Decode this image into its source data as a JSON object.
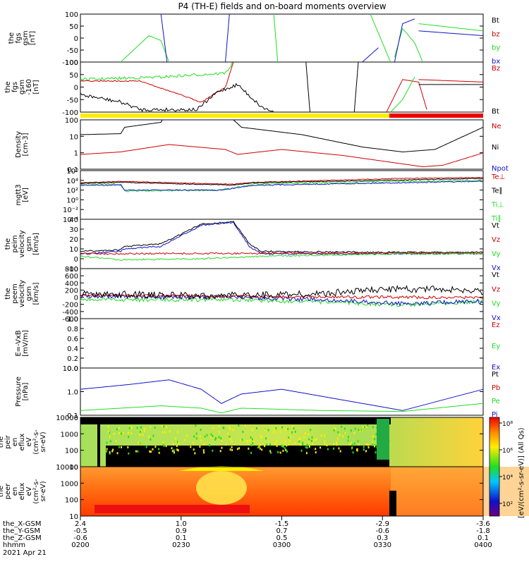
{
  "title": "P4 (TH-E) fields and on-board moments overview",
  "colors": {
    "black": "#000000",
    "red": "#cc0000",
    "green": "#22dd22",
    "blue": "#1111cc",
    "yellow": "#ffee00"
  },
  "panels": [
    {
      "ylabel": [
        "the",
        "fgs",
        "gsm",
        "[nT]"
      ],
      "ticks": [
        "100",
        "50",
        "0",
        "-50",
        "-100"
      ],
      "legend": [
        {
          "t": "Bt",
          "c": "black"
        },
        {
          "t": "bz",
          "c": "red"
        },
        {
          "t": "by",
          "c": "green"
        },
        {
          "t": "bx",
          "c": "blue"
        }
      ]
    },
    {
      "ylabel": [
        "the",
        "fgs",
        "gsm",
        "-160",
        "[nT]"
      ],
      "ticks": [
        "100",
        "50",
        "0",
        "-50",
        "-100"
      ],
      "legend": [
        {
          "t": "Bz",
          "c": "red"
        },
        {
          "t": "Bt",
          "c": "black"
        }
      ]
    },
    {
      "ylabel": [
        "Density",
        "[cm-3]"
      ],
      "ticks": [
        "100",
        "10",
        "1",
        "0.1"
      ],
      "legend": [
        {
          "t": "Ne",
          "c": "red"
        },
        {
          "t": "Ni",
          "c": "black"
        },
        {
          "t": "Npot",
          "c": "blue"
        }
      ]
    },
    {
      "ylabel": [
        "mgtt3",
        "[eV]"
      ],
      "ticks": [
        "10⁶",
        "10⁴",
        "10²",
        "10⁰",
        "10⁻²",
        "10⁻⁴"
      ],
      "legend": [
        {
          "t": "Te⊥",
          "c": "red"
        },
        {
          "t": "Te∥",
          "c": "black"
        },
        {
          "t": "Ti⊥",
          "c": "green"
        },
        {
          "t": "Ti∥",
          "c": "green"
        }
      ]
    },
    {
      "ylabel": [
        "the",
        "peim",
        "velocity",
        "gsm",
        "[km/s]"
      ],
      "ticks": [
        "40",
        "30",
        "20",
        "10",
        "0",
        "-10"
      ],
      "legend": [
        {
          "t": "Vt",
          "c": "black"
        },
        {
          "t": "Vz",
          "c": "red"
        },
        {
          "t": "Vy",
          "c": "green"
        },
        {
          "t": "Vx",
          "c": "blue"
        }
      ]
    },
    {
      "ylabel": [
        "the",
        "peem",
        "velocity",
        "gsm",
        "[km/s]"
      ],
      "ticks": [
        "800",
        "600",
        "400",
        "200",
        "0",
        "-200",
        "-400",
        "-600"
      ],
      "legend": [
        {
          "t": "Vt",
          "c": "black"
        },
        {
          "t": "Vz",
          "c": "red"
        },
        {
          "t": "Vy",
          "c": "green"
        },
        {
          "t": "Vx",
          "c": "blue"
        }
      ]
    },
    {
      "ylabel": [
        "E=-VxB",
        "[mV/m]"
      ],
      "ticks": [
        "1.0",
        "0.8",
        "0.6",
        "0.4",
        "0.2",
        "0.0"
      ],
      "legend": [
        {
          "t": "Ez",
          "c": "red"
        },
        {
          "t": "Ey",
          "c": "green"
        },
        {
          "t": "Ex",
          "c": "blue"
        }
      ]
    },
    {
      "ylabel": [
        "Pressure",
        "[nPa]"
      ],
      "ticks": [
        "10.0",
        "1.0",
        "0.1"
      ],
      "legend": [
        {
          "t": "Pt",
          "c": "black"
        },
        {
          "t": "Pb",
          "c": "red"
        },
        {
          "t": "Pe",
          "c": "green"
        },
        {
          "t": "Pi",
          "c": "blue"
        }
      ]
    },
    {
      "ylabel": [
        "the",
        "peir",
        "en",
        "eflux",
        "eV",
        "(cm²-s-",
        "sr-eV)"
      ],
      "ticks": [
        "10000",
        "1000",
        "100",
        "10"
      ],
      "legend": []
    },
    {
      "ylabel": [
        "the",
        "peer",
        "en",
        "eflux",
        "eV",
        "(cm²-s-",
        "sr-eV)"
      ],
      "ticks": [
        "10000",
        "1000",
        "100",
        "10"
      ],
      "legend": []
    }
  ],
  "colorbar": {
    "ticks": [
      "10⁸",
      "10⁶",
      "10⁴",
      "10²"
    ],
    "label": "[eV/(cm²-s-sr-eV)] (All Qs)"
  },
  "xaxis": {
    "row_labels": [
      "the_X-GSM",
      "the_Y-GSM",
      "the_Z-GSM",
      "hhmm",
      "2021 Apr 21"
    ],
    "columns": [
      {
        "vals": [
          "2.4",
          "-0.5",
          "-0.6",
          "0200"
        ]
      },
      {
        "vals": [
          "1.0",
          "0.9",
          "0.1",
          "0230"
        ]
      },
      {
        "vals": [
          "-1.5",
          "0.7",
          "0.5",
          "0300"
        ]
      },
      {
        "vals": [
          "-2.9",
          "-0.6",
          "0.3",
          "0330"
        ]
      },
      {
        "vals": [
          "-3.6",
          "-1.8",
          "0.1",
          "0400"
        ]
      }
    ]
  },
  "chart_data": [
    {
      "type": "line",
      "title": "P4 (TH-E) fields and on-board moments overview",
      "ylabel": "the fgs gsm [nT]",
      "ylim": [
        -100,
        100
      ],
      "x_time": [
        "0200",
        "0230",
        "0300",
        "0330",
        "0400"
      ],
      "series": [
        {
          "name": "Bt",
          "values": []
        },
        {
          "name": "bz",
          "values": []
        },
        {
          "name": "by",
          "values": [
            -100,
            0,
            -100,
            60,
            20
          ]
        },
        {
          "name": "bx",
          "values": [
            100,
            -100,
            100,
            -100,
            40
          ]
        }
      ]
    },
    {
      "type": "line",
      "ylabel": "the fgs gsm -160 [nT]",
      "ylim": [
        -120,
        100
      ],
      "x_time": [
        "0200",
        "0210",
        "0220",
        "0230",
        "0240",
        "0250",
        "0300",
        "0330",
        "0340",
        "0400"
      ],
      "series": [
        {
          "name": "Bz",
          "values": [
            30,
            25,
            0,
            -50,
            30,
            100,
            100,
            20,
            -20,
            5
          ]
        },
        {
          "name": "Bt",
          "values": [
            -40,
            -80,
            -110,
            -110,
            20,
            -80,
            -110,
            20,
            -10,
            0
          ]
        },
        {
          "name": "green",
          "values": [
            35,
            40,
            55,
            60,
            100,
            100,
            100,
            -100,
            -10,
            -5
          ]
        }
      ]
    },
    {
      "type": "line",
      "ylabel": "Density [cm-3]",
      "log": true,
      "ylim": [
        0.1,
        200
      ],
      "x_time": [
        "0200",
        "0210",
        "0220",
        "0230",
        "0240",
        "0250",
        "0300",
        "0315",
        "0330",
        "0345",
        "0400"
      ],
      "series": [
        {
          "name": "Ni",
          "values": [
            50,
            150,
            250,
            250,
            250,
            250,
            60,
            10,
            3,
            3,
            90
          ]
        },
        {
          "name": "Ne",
          "values": [
            0.5,
            1,
            3,
            5,
            3,
            1,
            1.5,
            0.5,
            0.15,
            0.3,
            2
          ]
        }
      ]
    },
    {
      "type": "line",
      "ylabel": "mgtt3 [eV]",
      "log": true,
      "ylim": [
        0.0001,
        1000000
      ],
      "series": [
        {
          "name": "Te⊥",
          "values": []
        },
        {
          "name": "Te∥",
          "values": []
        },
        {
          "name": "Ti⊥",
          "values": []
        },
        {
          "name": "Ti∥",
          "values": []
        }
      ]
    },
    {
      "type": "line",
      "ylabel": "the peim velocity gsm [km/s]",
      "ylim": [
        -15,
        40
      ],
      "x_time": [
        "0200",
        "0210",
        "0220",
        "0230",
        "0240",
        "0250",
        "0300",
        "0330",
        "0400"
      ],
      "series": [
        {
          "name": "Vt",
          "values": [
            5,
            10,
            12,
            20,
            38,
            30,
            5,
            5,
            3
          ]
        },
        {
          "name": "Vz",
          "values": [
            2,
            3,
            3,
            3,
            3,
            2,
            2,
            3,
            2
          ]
        },
        {
          "name": "Vy",
          "values": [
            0,
            -5,
            -3,
            -1,
            -2,
            0,
            1,
            2,
            1
          ]
        },
        {
          "name": "Vx",
          "values": [
            3,
            8,
            10,
            18,
            36,
            28,
            3,
            4,
            2
          ]
        }
      ]
    },
    {
      "type": "line",
      "ylabel": "the peem velocity gsm [km/s]",
      "ylim": [
        -650,
        850
      ],
      "series": [
        {
          "name": "Vt",
          "values": [
            120,
            100,
            110,
            100,
            120,
            200,
            250,
            200
          ]
        },
        {
          "name": "Vz",
          "values": [
            60,
            40,
            20,
            10,
            30,
            50,
            60,
            40
          ]
        },
        {
          "name": "Vy",
          "values": [
            -20,
            -40,
            -60,
            -40,
            -80,
            -150,
            -200,
            -100
          ]
        },
        {
          "name": "Vx",
          "values": [
            0,
            -20,
            -10,
            0,
            -60,
            -100,
            -200,
            -120
          ]
        }
      ]
    },
    {
      "type": "line",
      "ylabel": "E=-VxB [mV/m]",
      "ylim": [
        0,
        1
      ],
      "series": []
    },
    {
      "type": "line",
      "ylabel": "Pressure [nPa]",
      "log": true,
      "ylim": [
        0.05,
        30
      ],
      "x_time": [
        "0200",
        "0215",
        "0230",
        "0240",
        "0245",
        "0300",
        "0330",
        "0400"
      ],
      "series": [
        {
          "name": "Pi",
          "values": [
            1,
            3,
            5.5,
            0.8,
            0.2,
            3,
            0.1,
            3
          ]
        },
        {
          "name": "Pe",
          "values": [
            0.05,
            0.1,
            0.15,
            0.06,
            0.04,
            0.1,
            0.05,
            0.2
          ]
        }
      ]
    },
    {
      "type": "heatmap",
      "ylabel": "the peir en eflux",
      "ylim": [
        5,
        30000
      ],
      "log": true
    },
    {
      "type": "heatmap",
      "ylabel": "the peer en eflux",
      "ylim": [
        5,
        30000
      ],
      "log": true
    }
  ]
}
